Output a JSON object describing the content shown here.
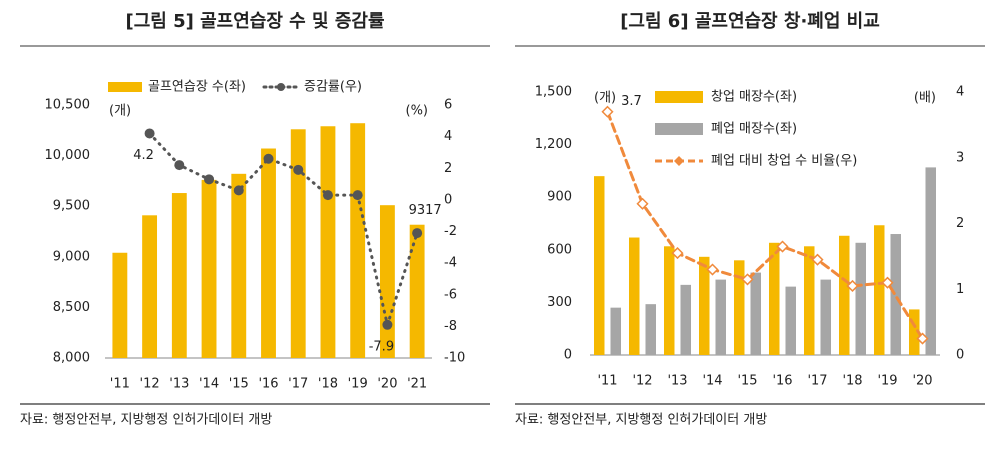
{
  "chart_data": [
    {
      "type": "bar",
      "title": "[그림 5] 골프연습장 수 및 증감률",
      "source": "자료: 행정안전부, 지방행정 인허가데이터 개방",
      "categories": [
        "'11",
        "'12",
        "'13",
        "'14",
        "'15",
        "'16",
        "'17",
        "'18",
        "'19",
        "'20",
        "'21"
      ],
      "series": [
        {
          "name": "골프연습장 수(좌)",
          "color": "#f5b800",
          "type": "bar",
          "values": [
            9040,
            9410,
            9630,
            9760,
            9820,
            10070,
            10260,
            10290,
            10320,
            9510,
            9317
          ],
          "value_labels": [
            null,
            null,
            null,
            null,
            null,
            null,
            null,
            null,
            null,
            null,
            "9317"
          ]
        },
        {
          "name": "증감률(우)",
          "color": "#555555",
          "type": "line",
          "axis": "y2",
          "style": "dotted",
          "marker": "circle",
          "values": [
            null,
            4.2,
            2.2,
            1.3,
            0.6,
            2.6,
            1.9,
            0.3,
            0.3,
            -7.9,
            -2.1
          ],
          "value_labels": [
            null,
            "4.2",
            null,
            null,
            null,
            null,
            null,
            null,
            null,
            "-7.9",
            null
          ]
        }
      ],
      "y_unit": "(개)",
      "y2_unit": "(%)",
      "ylim": [
        8000,
        10500
      ],
      "yticks": [
        {
          "value": 8000,
          "label": "8,000"
        },
        {
          "value": 8500,
          "label": "8,500"
        },
        {
          "value": 9000,
          "label": "9,000"
        },
        {
          "value": 9500,
          "label": "9,500"
        },
        {
          "value": 10000,
          "label": "10,000"
        },
        {
          "value": 10500,
          "label": "10,500"
        }
      ],
      "y2lim": [
        -10,
        6
      ],
      "y2ticks": [
        -10,
        -8,
        -6,
        -4,
        -2,
        0,
        2,
        4,
        6
      ]
    },
    {
      "type": "bar",
      "title": "[그림 6] 골프연습장 창·폐업 비교",
      "source": "자료: 행정안전부, 지방행정 인허가데이터 개방",
      "categories": [
        "'11",
        "'12",
        "'13",
        "'14",
        "'15",
        "'16",
        "'17",
        "'18",
        "'19",
        "'20"
      ],
      "series": [
        {
          "name": "창업 매장수(좌)",
          "color": "#f5b800",
          "type": "bar",
          "values": [
            1020,
            670,
            620,
            560,
            540,
            640,
            620,
            680,
            740,
            260
          ]
        },
        {
          "name": "폐업 매장수(좌)",
          "color": "#a6a6a6",
          "type": "bar",
          "values": [
            270,
            290,
            400,
            430,
            470,
            390,
            430,
            640,
            690,
            1070
          ]
        },
        {
          "name": "폐업 대비 창업 수 비율(우)",
          "color": "#f08a3c",
          "type": "line",
          "axis": "y2",
          "style": "dashed",
          "marker": "diamond",
          "values": [
            3.7,
            2.3,
            1.55,
            1.3,
            1.15,
            1.65,
            1.45,
            1.05,
            1.1,
            0.25
          ],
          "value_labels": [
            "3.7",
            null,
            null,
            null,
            null,
            null,
            null,
            null,
            null,
            null
          ]
        }
      ],
      "y_unit": "(개)",
      "y2_unit": "(배)",
      "ylim": [
        0,
        1500
      ],
      "yticks": [
        0,
        300,
        600,
        900,
        {
          "value": 1200,
          "label": "1,200"
        },
        {
          "value": 1500,
          "label": "1,500"
        }
      ],
      "y2lim": [
        0,
        4
      ],
      "y2ticks": [
        0,
        1,
        2,
        3,
        4
      ]
    }
  ]
}
